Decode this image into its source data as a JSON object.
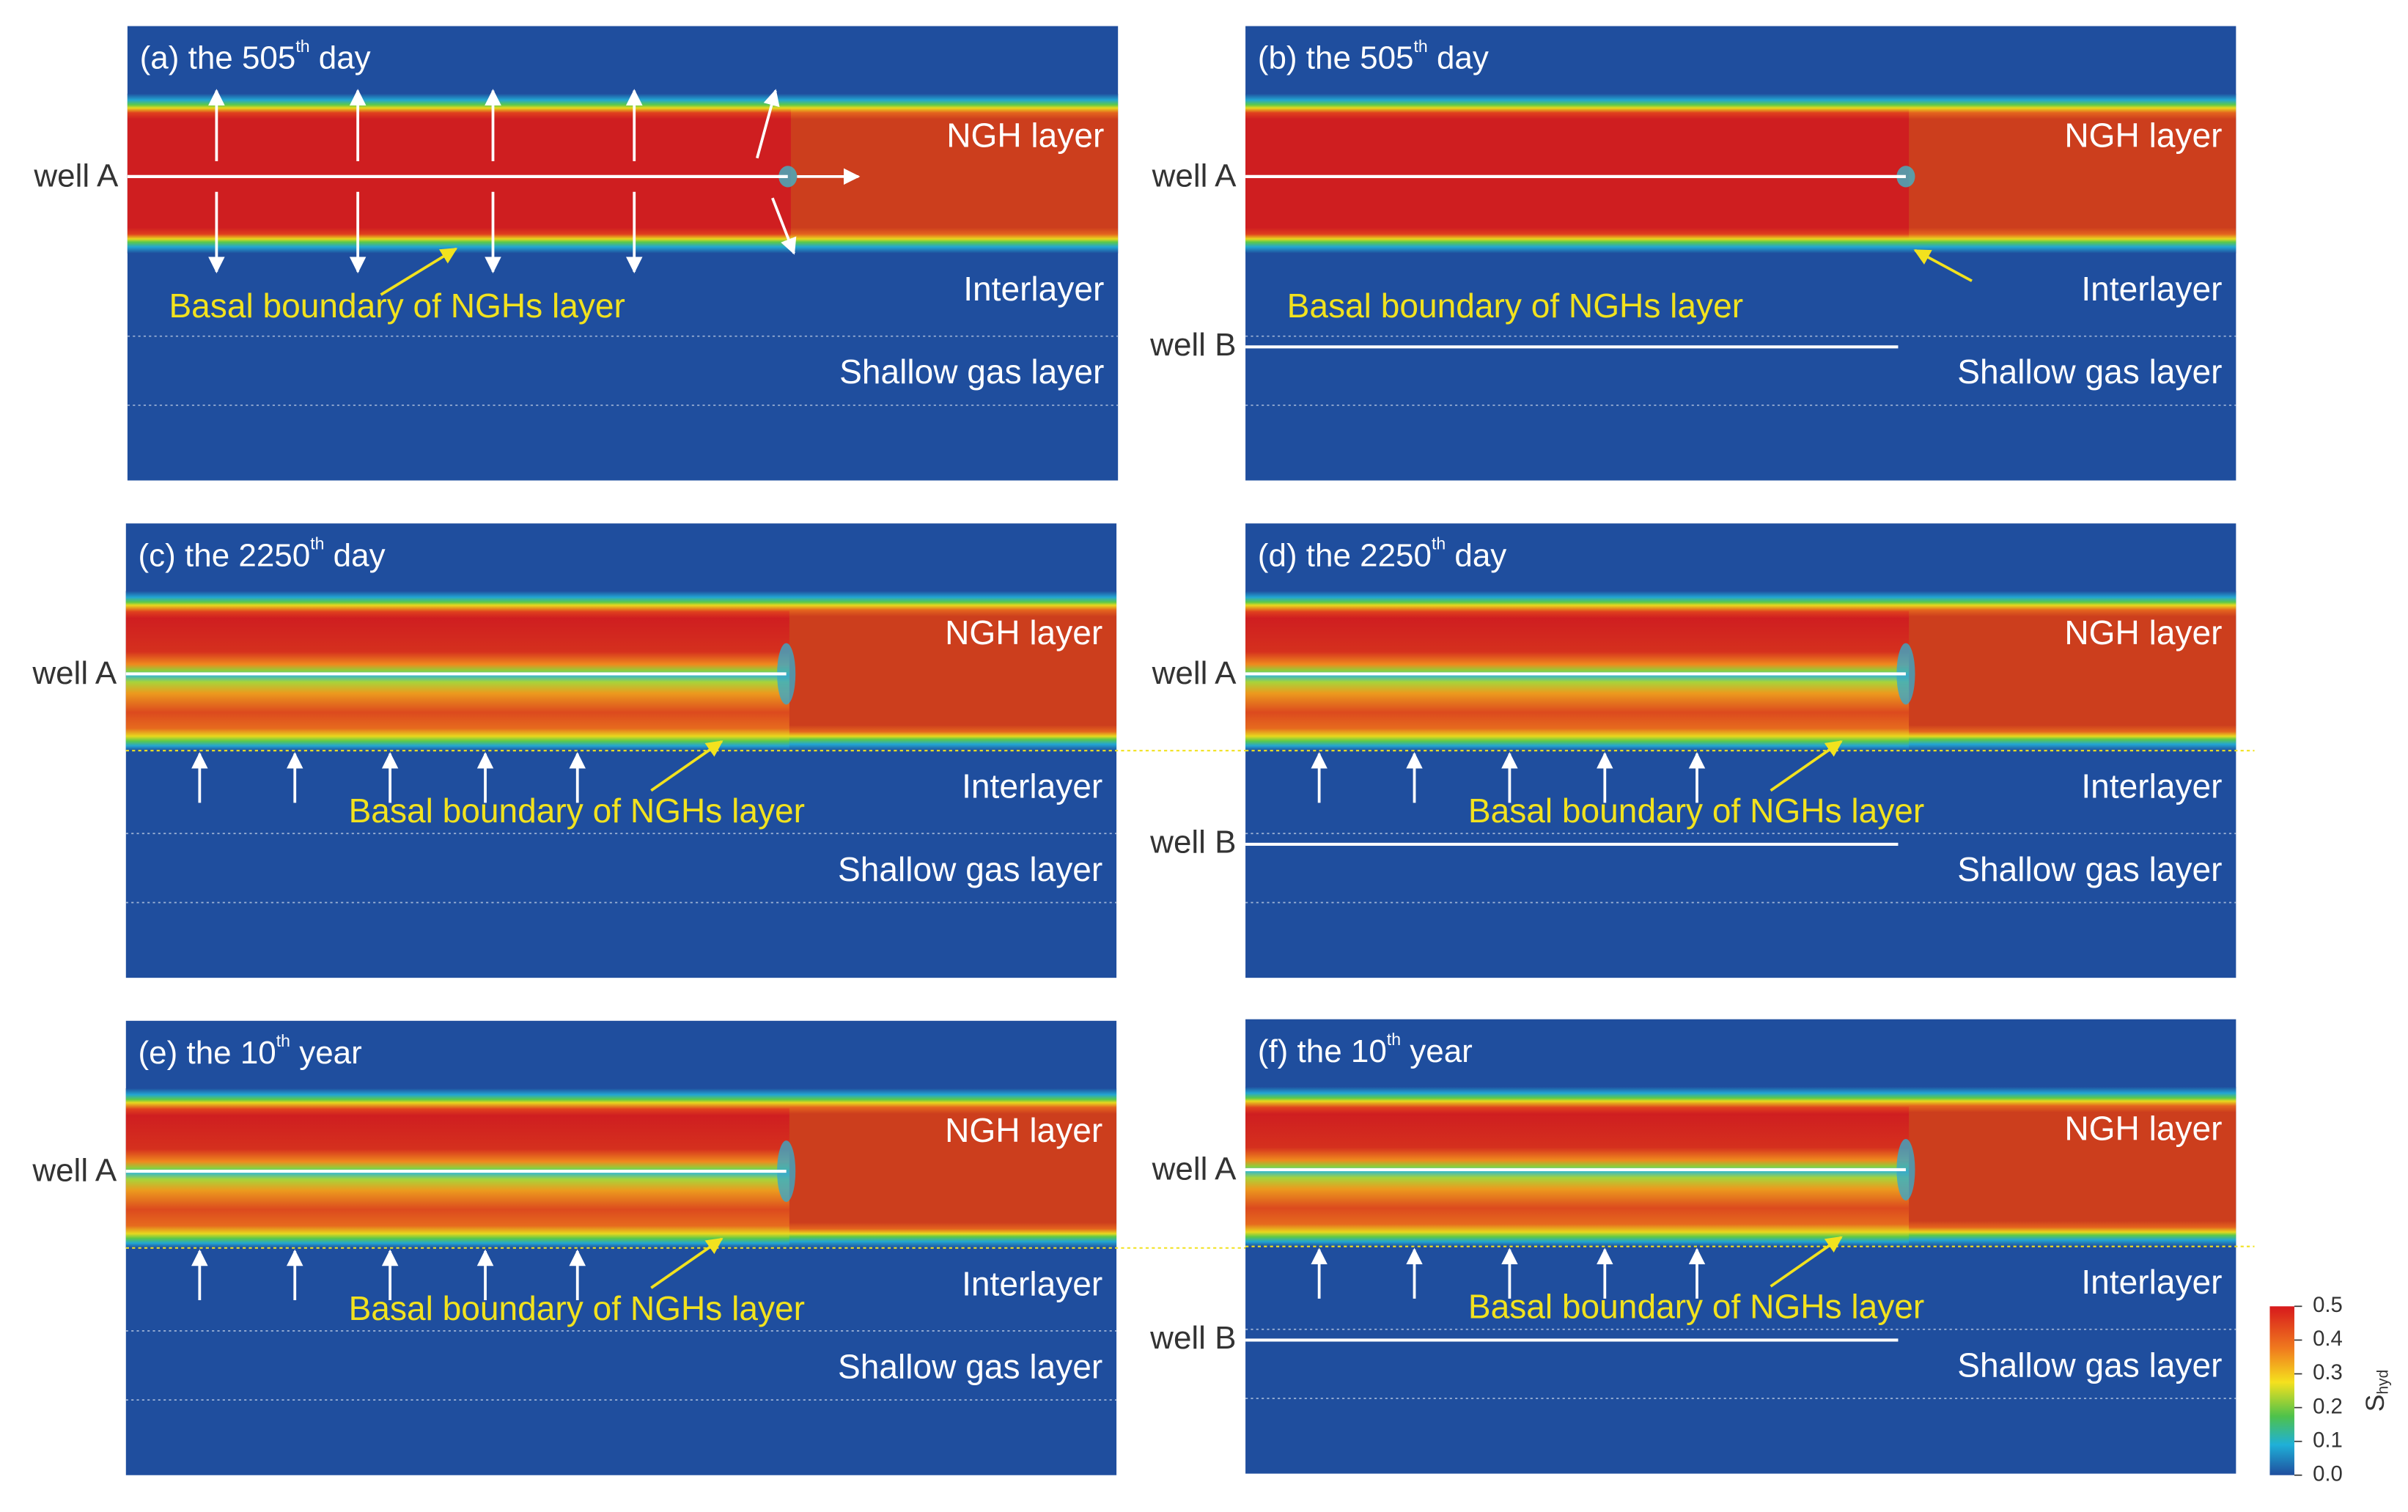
{
  "panels": [
    {
      "title": {
        "main": "(a) the 505",
        "sup": "th",
        "rest": " day"
      },
      "wells": [
        "well A"
      ],
      "layers": [
        "NGH layer",
        "Interlayer",
        "Shallow gas layer"
      ],
      "annotation": "Basal boundary of NGHs layer"
    },
    {
      "title": {
        "main": "(b) the 505",
        "sup": "th",
        "rest": " day"
      },
      "wells": [
        "well A",
        "well B"
      ],
      "layers": [
        "NGH layer",
        "Interlayer",
        "Shallow gas layer"
      ],
      "annotation": "Basal boundary of NGHs layer"
    },
    {
      "title": {
        "main": "(c) the 2250",
        "sup": "th",
        "rest": " day"
      },
      "wells": [
        "well A"
      ],
      "layers": [
        "NGH layer",
        "Interlayer",
        "Shallow gas layer"
      ],
      "annotation": "Basal boundary of NGHs layer"
    },
    {
      "title": {
        "main": "(d)  the 2250",
        "sup": "th",
        "rest": " day"
      },
      "wells": [
        "well A",
        "well B"
      ],
      "layers": [
        "NGH layer",
        "Interlayer",
        "Shallow gas layer"
      ],
      "annotation": "Basal boundary of NGHs layer"
    },
    {
      "title": {
        "main": "(e) the 10",
        "sup": "th",
        "rest": " year"
      },
      "wells": [
        "well A"
      ],
      "layers": [
        "NGH layer",
        "Interlayer",
        "Shallow gas layer"
      ],
      "annotation": "Basal boundary of NGHs layer"
    },
    {
      "title": {
        "main": "(f) the 10",
        "sup": "th",
        "rest": " year"
      },
      "wells": [
        "well A",
        "well B"
      ],
      "layers": [
        "NGH layer",
        "Interlayer",
        "Shallow gas layer"
      ],
      "annotation": "Basal boundary of NGHs layer"
    }
  ],
  "colorbar": {
    "label": "S",
    "sub": "hyd",
    "ticks": [
      0.5,
      0.4,
      0.3,
      0.2,
      0.1,
      {
        "value": 0,
        "label": "0.0"
      }
    ],
    "lim": [
      0,
      0.5
    ]
  }
}
